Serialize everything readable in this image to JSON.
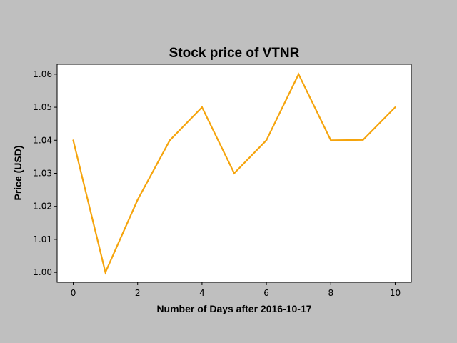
{
  "chart_data": {
    "type": "line",
    "title": "Stock price of VTNR",
    "xlabel": "Number of Days after 2016-10-17",
    "ylabel": "Price (USD)",
    "xlim": [
      -0.5,
      10.5
    ],
    "ylim": [
      0.997,
      1.063
    ],
    "xticks": [
      0,
      2,
      4,
      6,
      8,
      10
    ],
    "yticks": [
      1.0,
      1.01,
      1.02,
      1.03,
      1.04,
      1.05,
      1.06
    ],
    "ytick_labels": [
      "1.00",
      "1.01",
      "1.02",
      "1.03",
      "1.04",
      "1.05",
      "1.06"
    ],
    "grid": false,
    "series": [
      {
        "color": "#f5a40c",
        "x": [
          0,
          1,
          2,
          3,
          4,
          5,
          6,
          7,
          8,
          9,
          10
        ],
        "y": [
          1.04,
          1.0,
          1.022,
          1.04,
          1.05,
          1.03,
          1.04,
          1.06,
          1.04,
          1.0401,
          1.05
        ]
      }
    ]
  }
}
